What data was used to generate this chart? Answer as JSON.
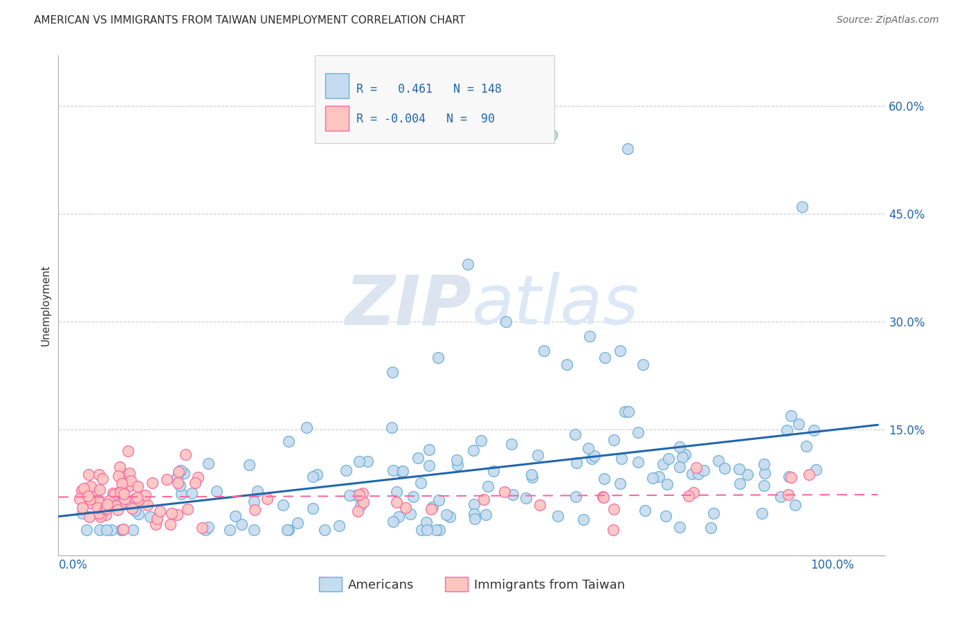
{
  "title": "AMERICAN VS IMMIGRANTS FROM TAIWAN UNEMPLOYMENT CORRELATION CHART",
  "source": "Source: ZipAtlas.com",
  "ylabel_label": "Unemployment",
  "xlim": [
    -0.02,
    1.07
  ],
  "ylim": [
    -0.025,
    0.67
  ],
  "american_R": 0.461,
  "american_N": 148,
  "taiwan_R": -0.004,
  "taiwan_N": 90,
  "blue_scatter_face": "#c6dbef",
  "blue_scatter_edge": "#6baed6",
  "blue_line": "#2166ac",
  "pink_scatter_face": "#fcc5c0",
  "pink_scatter_edge": "#f768a1",
  "pink_line": "#f768a1",
  "grid_color": "#cccccc",
  "background_color": "#ffffff",
  "watermark_color": "#dce4f0",
  "legend_label_american": "Americans",
  "legend_label_taiwan": "Immigrants from Taiwan",
  "y_ticks": [
    0.0,
    0.15,
    0.3,
    0.45,
    0.6
  ],
  "y_tick_labels": [
    "",
    "15.0%",
    "30.0%",
    "45.0%",
    "60.0%"
  ],
  "x_ticks": [
    0.0,
    0.25,
    0.5,
    0.75,
    1.0
  ],
  "x_tick_labels": [
    "0.0%",
    "",
    "",
    "",
    "100.0%"
  ]
}
